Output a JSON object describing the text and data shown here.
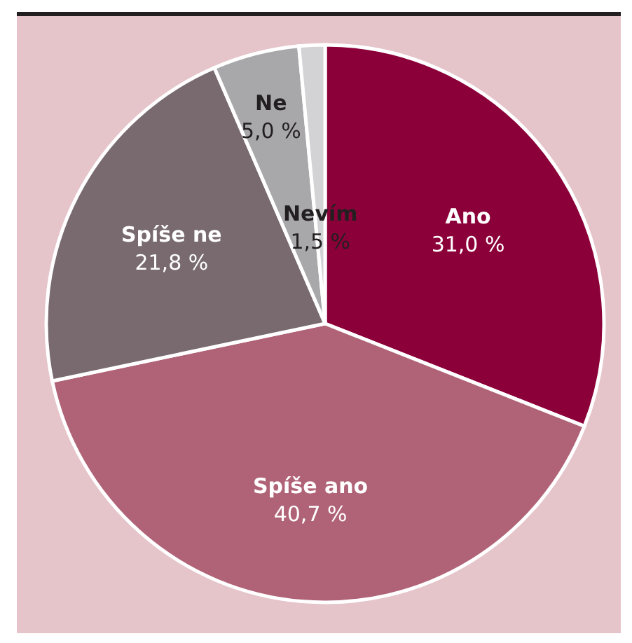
{
  "chart_data": {
    "type": "pie",
    "categories": [
      "Ano",
      "Spíše ano",
      "Spíše ne",
      "Ne",
      "Nevím"
    ],
    "values": [
      31.0,
      40.7,
      21.8,
      5.0,
      1.5
    ],
    "colors": [
      "#8c003a",
      "#b06377",
      "#786a6f",
      "#a8a8ab",
      "#d3d3d5"
    ],
    "value_labels": [
      "31,0 %",
      "40,7 %",
      "21,8 %",
      "5,0 %",
      "1,5 %"
    ]
  }
}
